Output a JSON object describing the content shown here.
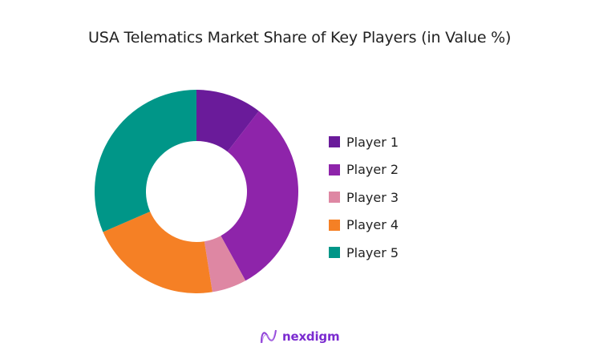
{
  "title": "USA Telematics Market Share of Key Players (in Value %)",
  "brand": {
    "name": "nexdigm",
    "icon": "nexdigm-wave-logo-icon",
    "color": "#7b2bd0"
  },
  "chart_data": {
    "type": "pie",
    "variant": "donut",
    "title": "USA Telematics Market Share of Key Players (in Value %)",
    "categories": [
      "Player 1",
      "Player 2",
      "Player 3",
      "Player 4",
      "Player 5"
    ],
    "values": [
      10.5,
      31.5,
      5.5,
      21.0,
      31.5
    ],
    "unit": "%",
    "colors": [
      "#6a1b9a",
      "#8e24aa",
      "#de87a3",
      "#f58025",
      "#009688"
    ],
    "start_angle_deg": 0,
    "direction": "clockwise",
    "legend_position": "right",
    "center": [
      245,
      239
    ],
    "outer_radius": 127,
    "inner_radius": 63
  },
  "legend": [
    {
      "label": "Player 1",
      "color": "#6a1b9a"
    },
    {
      "label": "Player 2",
      "color": "#8e24aa"
    },
    {
      "label": "Player 3",
      "color": "#de87a3"
    },
    {
      "label": "Player 4",
      "color": "#f58025"
    },
    {
      "label": "Player 5",
      "color": "#009688"
    }
  ]
}
